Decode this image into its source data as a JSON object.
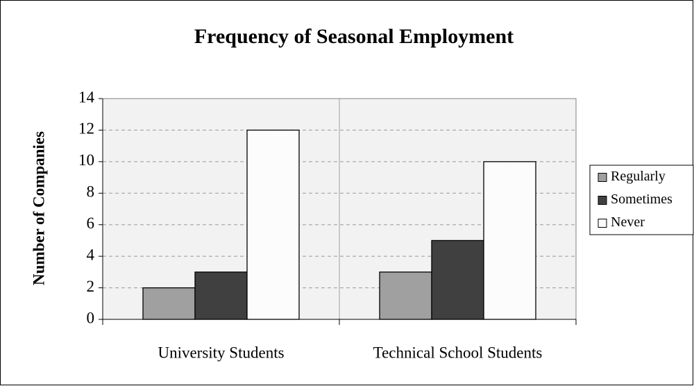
{
  "chart_data": {
    "type": "bar",
    "title": "Frequency of Seasonal Employment",
    "y_label": "Number of Companies",
    "categories": [
      "University Students",
      "Technical School Students"
    ],
    "series": [
      {
        "name": "Regularly",
        "color": "#a0a0a0",
        "values": [
          2,
          3
        ]
      },
      {
        "name": "Sometimes",
        "color": "#404040",
        "values": [
          3,
          5
        ]
      },
      {
        "name": "Never",
        "color": "#fcfcfc",
        "values": [
          12,
          10
        ]
      }
    ],
    "ylim": [
      0,
      14
    ],
    "yticks": [
      0,
      2,
      4,
      6,
      8,
      10,
      12,
      14
    ],
    "grid": true,
    "legend": "right"
  }
}
